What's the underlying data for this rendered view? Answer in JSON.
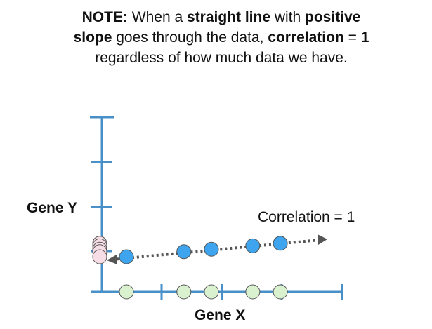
{
  "note": {
    "prefix": "NOTE:",
    "t1": " When a ",
    "b1": "straight line",
    "t2": " with ",
    "b2": "positive slope",
    "t3": " goes through the data, ",
    "b3": "correlation",
    "t4": " = ",
    "b4": "1",
    "t5": " regardless of how much data we have."
  },
  "axes": {
    "x_label": "Gene X",
    "y_label": "Gene Y"
  },
  "annotation": {
    "label": "Correlation = 1"
  },
  "colors": {
    "axis": "#4a90c8",
    "blue_point": "#3fa4ee",
    "green_point": "#d9f1cf",
    "pink_point": "#f7dde6",
    "arrow": "#555555",
    "point_stroke": "#555555"
  },
  "points": [
    {
      "x": 1,
      "y": 1
    },
    {
      "x": 3.5,
      "y": 1.6
    },
    {
      "x": 4.7,
      "y": 1.9
    },
    {
      "x": 6.5,
      "y": 2.3
    },
    {
      "x": 7.7,
      "y": 2.6
    }
  ]
}
